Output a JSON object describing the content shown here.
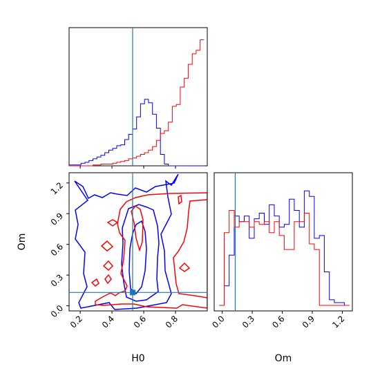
{
  "chart_data": [
    {
      "panel": "H0 marginal histogram",
      "type": "histogram",
      "xlabel": "",
      "xlim": [
        0.13,
        1.0
      ],
      "bins": [
        0.13,
        0.155,
        0.18,
        0.205,
        0.23,
        0.255,
        0.28,
        0.305,
        0.33,
        0.355,
        0.38,
        0.405,
        0.43,
        0.455,
        0.48,
        0.505,
        0.53,
        0.555,
        0.58,
        0.605,
        0.63,
        0.655,
        0.68,
        0.705,
        0.73,
        0.755,
        0.78,
        0.805,
        0.83,
        0.855,
        0.88,
        0.905,
        0.93,
        0.955,
        0.98
      ],
      "truth": 0.53,
      "truth_color": "#1f77b4",
      "series": [
        {
          "color": "#0000ff",
          "counts": [
            1,
            1,
            1,
            3,
            4,
            6,
            8,
            10,
            12,
            15,
            18,
            20,
            23,
            24,
            30,
            36,
            42,
            56,
            71,
            76,
            72,
            59,
            43,
            13,
            2,
            0,
            0,
            0,
            0,
            0,
            0,
            0,
            0,
            0
          ]
        },
        {
          "color": "#ff0000",
          "counts": [
            0,
            0,
            0,
            0,
            0,
            0,
            1,
            1,
            2,
            2,
            2,
            3,
            4,
            5,
            6,
            8,
            9,
            11,
            13,
            15,
            18,
            22,
            29,
            37,
            40,
            50,
            68,
            70,
            90,
            100,
            116,
            128,
            132,
            144
          ]
        }
      ]
    },
    {
      "panel": "H0 vs Om 2D contours",
      "type": "contour",
      "xlabel": "H0",
      "ylabel": "Om",
      "xlim": [
        0.13,
        1.0
      ],
      "ylim": [
        -0.05,
        1.3
      ],
      "xticks": [
        "0.2",
        "0.4",
        "0.6",
        "0.8"
      ],
      "yticks": [
        "0.0",
        "0.3",
        "0.6",
        "0.9",
        "1.2"
      ],
      "truth": [
        0.53,
        0.13
      ],
      "truth_color": "#1f77b4",
      "series_colors": [
        "#0000ff",
        "#ff0000"
      ]
    },
    {
      "panel": "Om marginal histogram",
      "type": "histogram",
      "xlabel": "Om",
      "xlim": [
        -0.08,
        1.3
      ],
      "xticks": [
        "0.0",
        "0.3",
        "0.6",
        "0.9",
        "1.2"
      ],
      "bins": [
        -0.03,
        0.02,
        0.07,
        0.12,
        0.17,
        0.22,
        0.27,
        0.32,
        0.37,
        0.42,
        0.47,
        0.52,
        0.57,
        0.62,
        0.67,
        0.72,
        0.77,
        0.82,
        0.87,
        0.92,
        0.97,
        1.02,
        1.07,
        1.12,
        1.17,
        1.22,
        1.27
      ],
      "truth": 0.13,
      "truth_color": "#1f77b4",
      "series": [
        {
          "color": "#0000ff",
          "counts": [
            0,
            7,
            18,
            32,
            30,
            32,
            24,
            31,
            33,
            29,
            36,
            32,
            28,
            29,
            38,
            34,
            28,
            41,
            39,
            24,
            25,
            12,
            2,
            1,
            1,
            0
          ]
        },
        {
          "color": "#ff0000",
          "counts": [
            0,
            26,
            34,
            28,
            30,
            30,
            28,
            30,
            29,
            30,
            26,
            30,
            25,
            20,
            20,
            30,
            30,
            33,
            22,
            20,
            0,
            0,
            0,
            0,
            0,
            0
          ]
        }
      ]
    }
  ]
}
